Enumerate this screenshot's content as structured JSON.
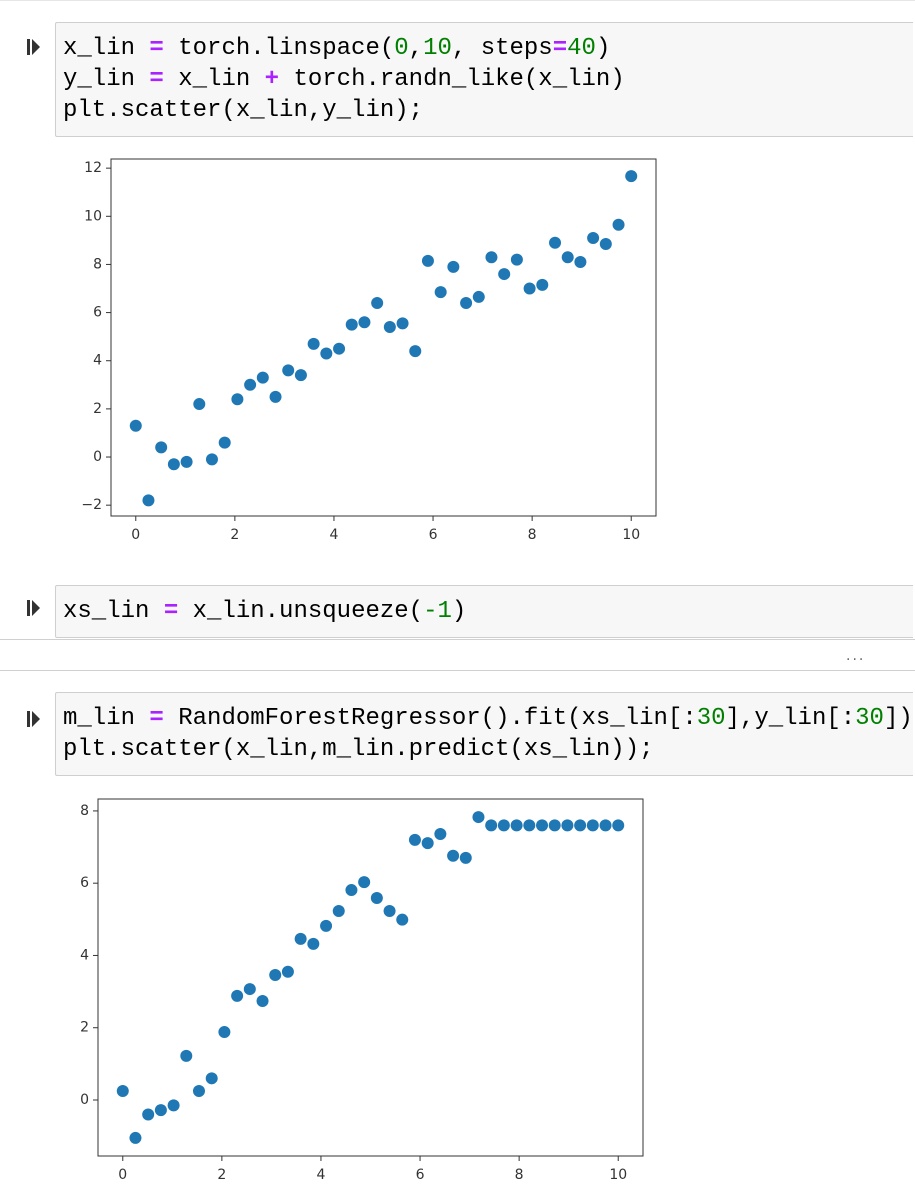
{
  "cells": [
    {
      "lines": [
        [
          "x_lin ",
          {
            "text": "=",
            "color": "#aa22ff"
          },
          " torch.linspace(",
          {
            "text": "0",
            "color": "#008000"
          },
          ",",
          {
            "text": "10",
            "color": "#008000"
          },
          ", steps",
          {
            "text": "=",
            "color": "#aa22ff"
          },
          {
            "text": "40",
            "color": "#008000"
          },
          ")"
        ],
        [
          "y_lin ",
          {
            "text": "=",
            "color": "#aa22ff"
          },
          " x_lin ",
          {
            "text": "+",
            "color": "#aa22ff"
          },
          " torch.randn_like(x_lin)"
        ],
        [
          "plt.scatter(x_lin,y_lin);"
        ]
      ]
    },
    {
      "lines": [
        [
          "xs_lin ",
          {
            "text": "=",
            "color": "#aa22ff"
          },
          " x_lin.unsqueeze(",
          {
            "text": "-1",
            "color": "#008000"
          },
          ")"
        ]
      ]
    },
    {
      "lines": [
        [
          "m_lin ",
          {
            "text": "=",
            "color": "#aa22ff"
          },
          " RandomForestRegressor().fit(xs_lin[:",
          {
            "text": "30",
            "color": "#008000"
          },
          "],y_lin[:",
          {
            "text": "30",
            "color": "#008000"
          },
          "])"
        ],
        [
          "plt.scatter(x_lin,m_lin.predict(xs_lin));"
        ]
      ]
    }
  ],
  "collapsed_marker": "...",
  "chart_data": [
    {
      "type": "scatter",
      "color": "#1f77b4",
      "grid": false,
      "x": [
        0,
        0.256,
        0.513,
        0.769,
        1.026,
        1.282,
        1.538,
        1.795,
        2.051,
        2.308,
        2.564,
        2.821,
        3.077,
        3.333,
        3.59,
        3.846,
        4.103,
        4.359,
        4.615,
        4.872,
        5.128,
        5.385,
        5.641,
        5.897,
        6.154,
        6.41,
        6.667,
        6.923,
        7.179,
        7.436,
        7.692,
        7.949,
        8.205,
        8.462,
        8.718,
        8.974,
        9.231,
        9.487,
        9.744,
        10
      ],
      "values": [
        1.3,
        -1.8,
        0.4,
        -0.3,
        -0.2,
        2.2,
        -0.1,
        0.6,
        2.4,
        3.0,
        3.3,
        2.5,
        3.6,
        3.4,
        4.7,
        4.3,
        4.5,
        5.5,
        5.6,
        6.4,
        5.4,
        5.55,
        4.4,
        8.15,
        6.85,
        7.9,
        6.4,
        6.65,
        8.3,
        7.6,
        8.2,
        7.0,
        7.15,
        8.9,
        8.3,
        8.1,
        9.1,
        8.85,
        9.65,
        11.67
      ],
      "xlim": [
        -0.5,
        10.5
      ],
      "ylim": [
        -2.45,
        12.38
      ],
      "xticks": [
        0,
        2,
        4,
        6,
        8,
        10
      ],
      "yticks": [
        {
          "value": -2,
          "label": "−2"
        },
        0,
        2,
        4,
        6,
        8,
        10,
        12
      ]
    },
    {
      "type": "scatter",
      "color": "#1f77b4",
      "grid": false,
      "x": [
        0,
        0.256,
        0.513,
        0.769,
        1.026,
        1.282,
        1.538,
        1.795,
        2.051,
        2.308,
        2.564,
        2.821,
        3.077,
        3.333,
        3.59,
        3.846,
        4.103,
        4.359,
        4.615,
        4.872,
        5.128,
        5.385,
        5.641,
        5.897,
        6.154,
        6.41,
        6.667,
        6.923,
        7.179,
        7.436,
        7.692,
        7.949,
        8.205,
        8.462,
        8.718,
        8.974,
        9.231,
        9.487,
        9.744,
        10
      ],
      "values": [
        0.25,
        -1.05,
        -0.4,
        -0.28,
        -0.15,
        1.22,
        0.25,
        0.6,
        1.88,
        2.88,
        3.07,
        2.74,
        3.46,
        3.55,
        4.46,
        4.32,
        4.82,
        5.23,
        5.81,
        6.03,
        5.59,
        5.23,
        4.99,
        7.2,
        7.11,
        7.36,
        6.76,
        6.7,
        7.83,
        7.6,
        7.6,
        7.6,
        7.6,
        7.6,
        7.6,
        7.6,
        7.6,
        7.6,
        7.6,
        7.6
      ],
      "xlim": [
        -0.5,
        10.5
      ],
      "ylim": [
        -1.55,
        8.33
      ],
      "xticks": [
        0,
        2,
        4,
        6,
        8,
        10
      ],
      "yticks": [
        0,
        2,
        4,
        6,
        8
      ]
    }
  ]
}
